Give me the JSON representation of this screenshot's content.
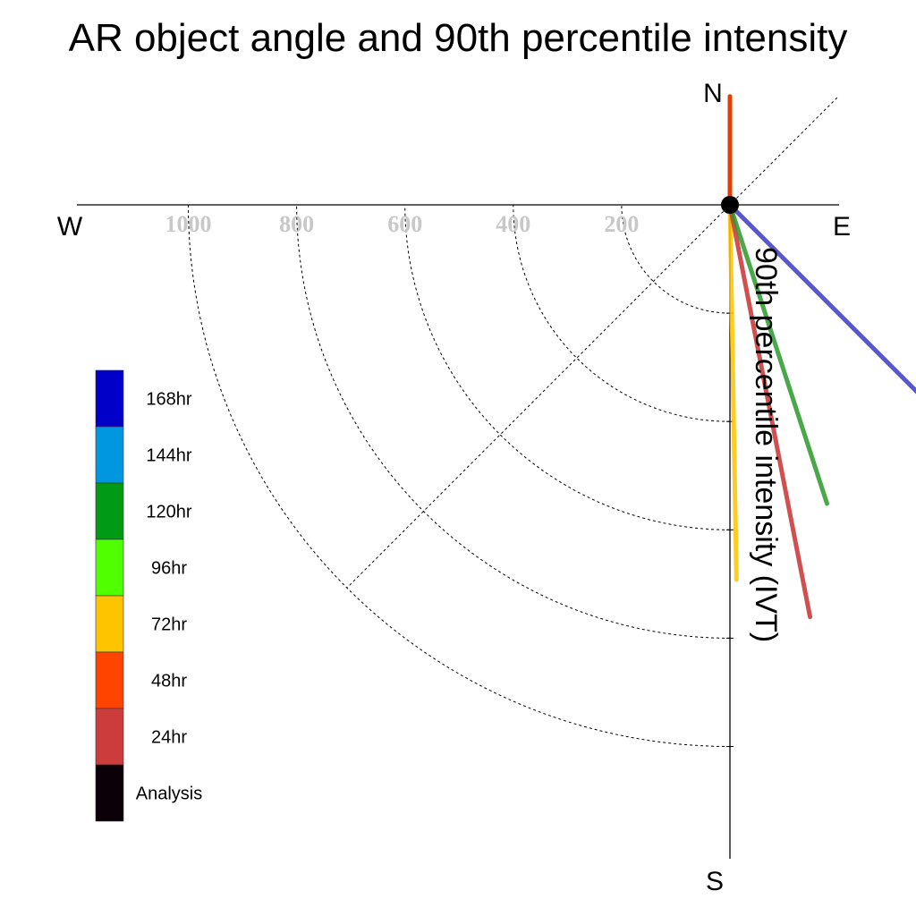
{
  "chart_data": {
    "type": "polar-vector",
    "title": "AR object angle and 90th percentile intensity",
    "radial_label": "90th percentile intensity (IVT)",
    "compass": {
      "north": "N",
      "south": "S",
      "east": "E",
      "west": "W"
    },
    "radial_ticks": [
      200,
      400,
      600,
      800,
      1000
    ],
    "radial_tick_labels": [
      "200",
      "400",
      "600",
      "800",
      "1000"
    ],
    "series": [
      {
        "name": "Analysis",
        "color": "#000000",
        "angle_deg": 0,
        "value": 200
      },
      {
        "name": "48hr",
        "color": "#ff4500",
        "angle_deg": 0,
        "value": 200
      },
      {
        "name": "72hr",
        "color": "#ffc400",
        "angle_deg": 179,
        "value": 692
      },
      {
        "name": "24hr",
        "color": "#c83232",
        "angle_deg": 169,
        "value": 775
      },
      {
        "name": "120hr",
        "color": "#2a9a2a",
        "angle_deg": 162,
        "value": 580
      },
      {
        "name": "168hr",
        "color": "#3c3cc0",
        "angle_deg": 135,
        "value": 489
      }
    ],
    "legend": [
      {
        "label": "168hr",
        "color": "#0000c8"
      },
      {
        "label": "144hr",
        "color": "#0096e0"
      },
      {
        "label": "120hr",
        "color": "#009a14"
      },
      {
        "label": "96hr",
        "color": "#50ff00"
      },
      {
        "label": "72hr",
        "color": "#ffc400"
      },
      {
        "label": "48hr",
        "color": "#ff4400"
      },
      {
        "label": "24hr",
        "color": "#cc3c3c"
      },
      {
        "label": "Analysis",
        "color": "#0c0008"
      }
    ]
  }
}
